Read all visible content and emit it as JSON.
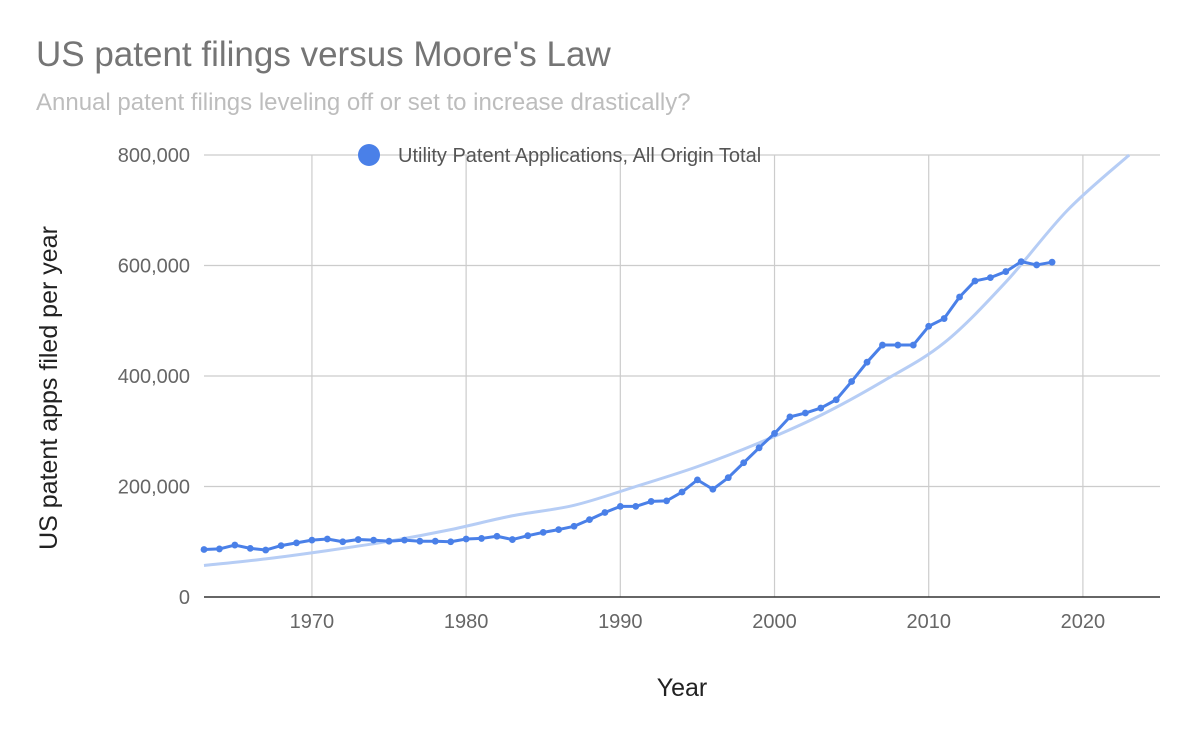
{
  "chart_data": {
    "type": "line",
    "title": "US patent filings versus Moore's Law",
    "subtitle": "Annual patent filings leveling off or set to increase drastically?",
    "xlabel": "Year",
    "ylabel": "US patent apps filed per year",
    "xlim": [
      1963,
      2025
    ],
    "ylim": [
      0,
      800000
    ],
    "x_ticks": [
      1970,
      1980,
      1990,
      2000,
      2010,
      2020
    ],
    "y_ticks": [
      0,
      200000,
      400000,
      600000,
      800000
    ],
    "y_tick_labels": [
      "0",
      "200,000",
      "400,000",
      "600,000",
      "800,000"
    ],
    "legend_position": "top",
    "grid": true,
    "series": [
      {
        "name": "Utility Patent Applications, All Origin Total",
        "color": "#4a80e8",
        "x": [
          1963,
          1964,
          1965,
          1966,
          1967,
          1968,
          1969,
          1970,
          1971,
          1972,
          1973,
          1974,
          1975,
          1976,
          1977,
          1978,
          1979,
          1980,
          1981,
          1982,
          1983,
          1984,
          1985,
          1986,
          1987,
          1988,
          1989,
          1990,
          1991,
          1992,
          1993,
          1994,
          1995,
          1996,
          1997,
          1998,
          1999,
          2000,
          2001,
          2002,
          2003,
          2004,
          2005,
          2006,
          2007,
          2008,
          2009,
          2010,
          2011,
          2012,
          2013,
          2014,
          2015,
          2016,
          2017,
          2018
        ],
        "values": [
          86000,
          87000,
          94000,
          88000,
          85000,
          93000,
          98000,
          103000,
          105000,
          100000,
          104000,
          103000,
          101000,
          103000,
          101000,
          101000,
          100000,
          105000,
          106000,
          110000,
          104000,
          111000,
          117000,
          122000,
          128000,
          140000,
          153000,
          164000,
          164000,
          173000,
          174000,
          190000,
          212000,
          195000,
          216000,
          243000,
          270000,
          296000,
          326000,
          333000,
          342000,
          357000,
          390000,
          425000,
          456000,
          456000,
          456000,
          490000,
          504000,
          543000,
          572000,
          578000,
          589000,
          607000,
          601000,
          606000
        ]
      },
      {
        "name": "Exponential trendline",
        "color": "#b6cdf5",
        "x": [
          1963,
          1967,
          1971,
          1975,
          1979,
          1983,
          1987,
          1991,
          1995,
          1999,
          2003,
          2007,
          2011,
          2015,
          2019,
          2023
        ],
        "values": [
          57000,
          69000,
          84000,
          101000,
          122000,
          147000,
          166000,
          200000,
          236000,
          279000,
          329000,
          390000,
          460000,
          570000,
          700000,
          800000
        ]
      }
    ]
  }
}
